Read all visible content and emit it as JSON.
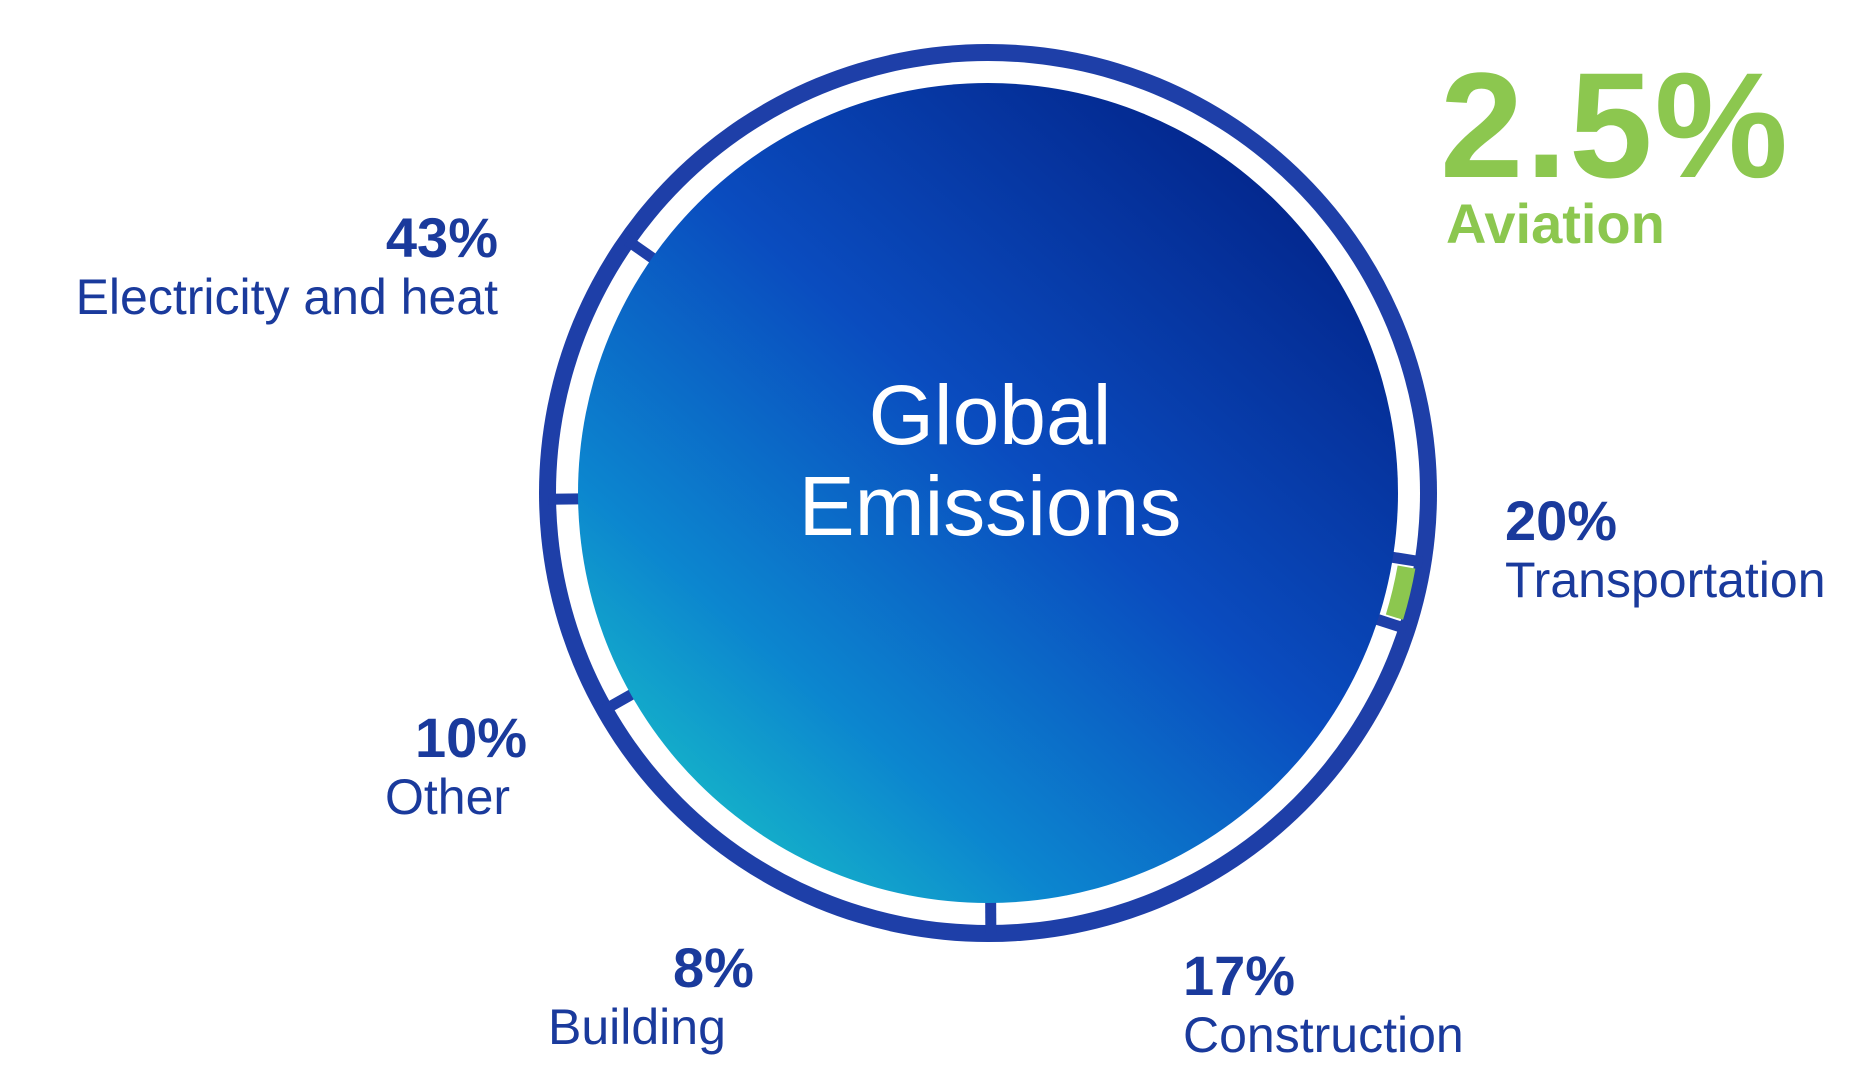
{
  "center": {
    "line1": "Global",
    "line2": "Emissions"
  },
  "chart_data": {
    "type": "pie",
    "title": "Global Emissions",
    "series": [
      {
        "name": "Global Emissions",
        "slices": [
          {
            "label": "Electricity and heat",
            "value": 43,
            "display": "43%",
            "color": "#1e3fa8"
          },
          {
            "label": "Aviation",
            "value": 2.5,
            "display": "2.5%",
            "color": "#8cc74f"
          },
          {
            "label": "Transportation",
            "value": 20,
            "display": "20%",
            "color": "#1e3fa8"
          },
          {
            "label": "Construction",
            "value": 17,
            "display": "17%",
            "color": "#1e3fa8"
          },
          {
            "label": "Building",
            "value": 8,
            "display": "8%",
            "color": "#1e3fa8"
          },
          {
            "label": "Other",
            "value": 10,
            "display": "10%",
            "color": "#1e3fa8"
          }
        ]
      }
    ]
  },
  "colors": {
    "ring": "#1e3fa8",
    "accent": "#8cc74f",
    "text": "#1a3a9c",
    "disc_dark": "#03268c",
    "disc_light": "#15b3c9"
  }
}
